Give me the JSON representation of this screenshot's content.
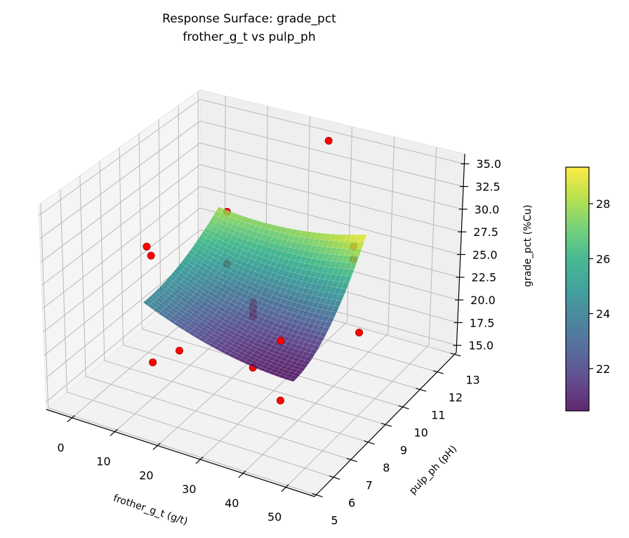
{
  "chart_data": {
    "type": "surface",
    "title": [
      "Response Surface: grade_pct",
      "frother_g_t vs pulp_ph"
    ],
    "xlabel": "frother_g_t (g/t)",
    "ylabel": "pulp_ph (pH)",
    "zlabel": "grade_pct (%Cu)",
    "xlim": [
      -6,
      56.7
    ],
    "ylim": [
      4.9,
      13.1
    ],
    "zlim": [
      14.2,
      36.1
    ],
    "x_ticks": [
      0,
      10,
      20,
      30,
      40,
      50
    ],
    "x_tick_labels": [
      "0",
      "10",
      "20",
      "30",
      "40",
      "50"
    ],
    "y_ticks": [
      5,
      6,
      7,
      8,
      9,
      10,
      11,
      12,
      13
    ],
    "y_tick_labels": [
      "5",
      "6",
      "7",
      "8",
      "9",
      "10",
      "11",
      "12",
      "13"
    ],
    "z_ticks": [
      15,
      17.5,
      20,
      22.5,
      25,
      27.5,
      30,
      32.5,
      35
    ],
    "z_tick_labels": [
      "15.0",
      "17.5",
      "20.0",
      "22.5",
      "25.0",
      "27.5",
      "30.0",
      "32.5",
      "35.0"
    ],
    "grid": true,
    "colormap": "viridis",
    "surface": {
      "frother": [
        8,
        16.75,
        25.5,
        34.25,
        43
      ],
      "ph": [
        7,
        8,
        9,
        10,
        11
      ],
      "z": [
        [
          24.2,
          22.58,
          21.43,
          20.73,
          20.5
        ],
        [
          24.44,
          22.9,
          21.82,
          21.2,
          21.05
        ],
        [
          25.15,
          23.84,
          23.0,
          22.62,
          22.7
        ],
        [
          26.34,
          25.42,
          24.97,
          24.98,
          25.45
        ],
        [
          28.0,
          27.63,
          27.73,
          28.28,
          29.3
        ]
      ],
      "alpha": 0.85
    },
    "scatter": {
      "color": "#ff0000",
      "edge_color": "#8b0000",
      "points": [
        {
          "frother": 25,
          "ph": 13,
          "grade": 34.1
        },
        {
          "frother": 10,
          "ph": 11,
          "grade": 27.7
        },
        {
          "frother": 10,
          "ph": 11,
          "grade": 21.9
        },
        {
          "frother": 0,
          "ph": 9,
          "grade": 25.9
        },
        {
          "frother": 10,
          "ph": 7,
          "grade": 29.5
        },
        {
          "frother": 10,
          "ph": 7,
          "grade": 18.0
        },
        {
          "frother": 25,
          "ph": 9,
          "grade": 23.1
        },
        {
          "frother": 25,
          "ph": 9,
          "grade": 22.6
        },
        {
          "frother": 25,
          "ph": 9,
          "grade": 22.1
        },
        {
          "frother": 25,
          "ph": 9,
          "grade": 21.6
        },
        {
          "frother": 25,
          "ph": 9,
          "grade": 16.0
        },
        {
          "frother": 25,
          "ph": 5,
          "grade": 24.7
        },
        {
          "frother": 40,
          "ph": 7,
          "grade": 24.4
        },
        {
          "frother": 40,
          "ph": 7,
          "grade": 18.1
        },
        {
          "frother": 40,
          "ph": 11,
          "grade": 27.6
        },
        {
          "frother": 40,
          "ph": 11,
          "grade": 26.2
        },
        {
          "frother": 50,
          "ph": 9,
          "grade": 23.1
        }
      ]
    },
    "colorbar": {
      "range": [
        20.46,
        29.33
      ],
      "ticks": [
        22,
        24,
        26,
        28
      ],
      "tick_labels": [
        "22",
        "24",
        "26",
        "28"
      ]
    }
  }
}
